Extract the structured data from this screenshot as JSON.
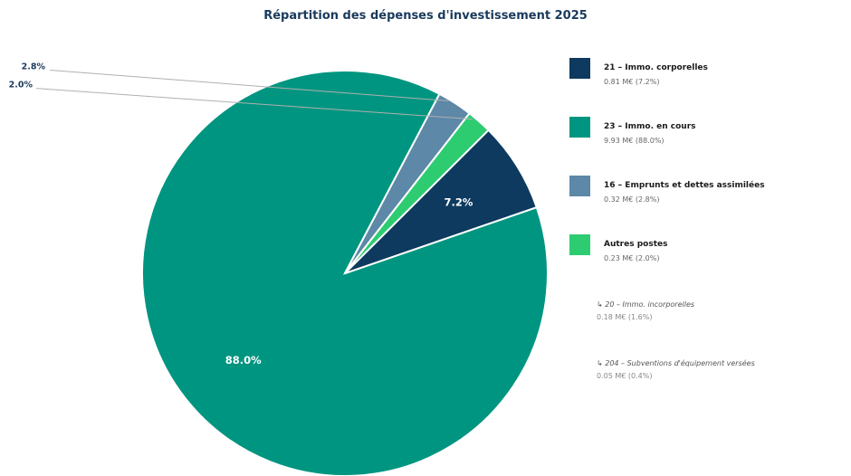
{
  "chart_data": {
    "type": "pie",
    "title": "Répartition des dépenses d'investissement 2025",
    "slices": [
      {
        "label": "23 – Immo. en cours",
        "value": 9.93,
        "percent": 88.0,
        "pct_label": "88.0%",
        "color": "#009580"
      },
      {
        "label": "16 – Emprunts et dettes assimilées",
        "value": 0.32,
        "percent": 2.8,
        "pct_label": "2.8%",
        "color": "#5d88a8"
      },
      {
        "label": "Autres postes",
        "value": 0.23,
        "percent": 2.0,
        "pct_label": "2.0%",
        "color": "#2ecc71"
      },
      {
        "label": "21 – Immo. corporelles",
        "value": 0.81,
        "percent": 7.2,
        "pct_label": "7.2%",
        "color": "#0d3a5e"
      }
    ],
    "legend": {
      "placement": "right",
      "items": [
        {
          "name": "21 – Immo. corporelles",
          "detail": "0.81 M€  (7.2%)",
          "color": "#0d3a5e"
        },
        {
          "name": "23 – Immo. en cours",
          "detail": "9.93 M€  (88.0%)",
          "color": "#009580"
        },
        {
          "name": "16 – Emprunts et dettes assimilées",
          "detail": "0.32 M€  (2.8%)",
          "color": "#5d88a8"
        },
        {
          "name": "Autres postes",
          "detail": "0.23 M€  (2.0%)",
          "color": "#2ecc71"
        }
      ],
      "sub_items": [
        {
          "name": "↳ 20 – Immo. incorporelles",
          "detail": "0.18 M€  (1.6%)"
        },
        {
          "name": "↳ 204 – Subventions d'équipement versées",
          "detail": "0.05 M€  (0.4%)"
        }
      ]
    }
  }
}
